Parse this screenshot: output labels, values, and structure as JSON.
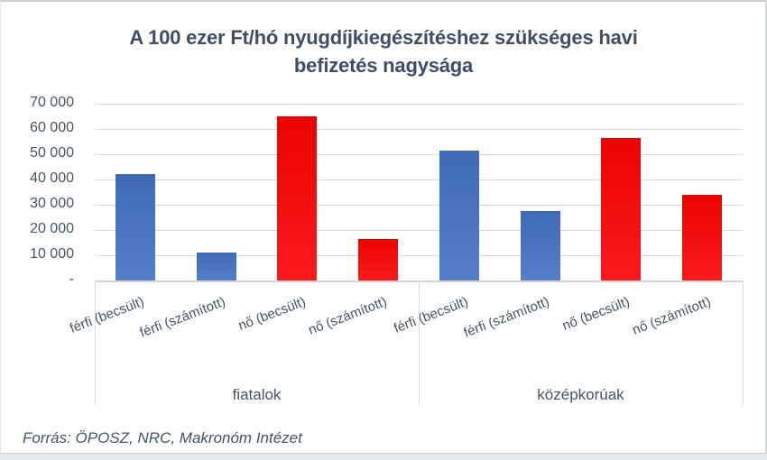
{
  "header": {
    "title_lines": [
      "A 100 ezer Ft/hó nyugdíjkiegészítéshez szükséges havi",
      "befizetés nagysága"
    ]
  },
  "chart_data": {
    "type": "bar",
    "title": "A 100 ezer Ft/hó nyugdíjkiegészítéshez szükséges havi befizetés nagysága",
    "categories": [
      "férfi (becsült)",
      "férfi (számított)",
      "nő (becsült)",
      "nő (számított)",
      "férfi (becsült)",
      "férfi (számított)",
      "nő (becsült)",
      "nő (számított)"
    ],
    "group_labels": [
      "fiatalok",
      "középkorúak"
    ],
    "values": [
      42000,
      11000,
      65000,
      16500,
      51500,
      27500,
      56500,
      34000
    ],
    "bar_colors": [
      "#4472C4",
      "#4472C4",
      "#FC0303",
      "#FC0303",
      "#4472C4",
      "#4472C4",
      "#FC0303",
      "#FC0303"
    ],
    "ylim": [
      0,
      70000
    ],
    "y_tick_step": 10000,
    "y_tick_labels_bottom_up": [
      "-",
      "10 000",
      "20 000",
      "30 000",
      "40 000",
      "50 000",
      "60 000",
      "70 000"
    ],
    "grid": true,
    "legend": "none",
    "source_note": "Forrás: ÖPOSZ, NRC, Makronóm Intézet",
    "colors": {
      "male_bars": "#4472C4",
      "female_bars": "#FC0303",
      "text": "#44546A",
      "gridline": "#D9D9D9"
    }
  }
}
